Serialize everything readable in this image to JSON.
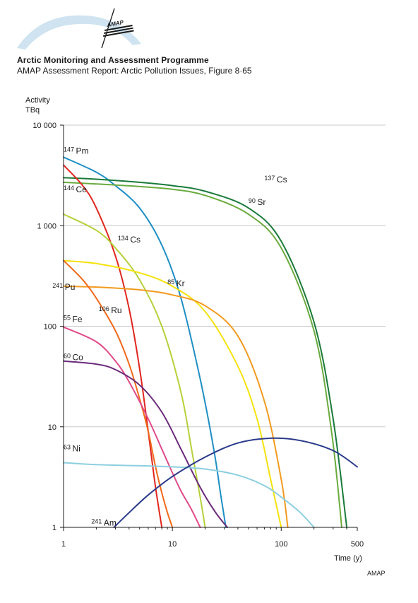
{
  "header": {
    "org_name": "Arctic Monitoring and Assessment Programme",
    "caption": "AMAP Assessment Report: Arctic Pollution Issues, Figure 8·65",
    "logo_text": "AMAP"
  },
  "footer": {
    "credit": "AMAP"
  },
  "chart_data": {
    "type": "line",
    "y_scale": "log",
    "x_scale": "log",
    "ylabel_line1": "Activity",
    "ylabel_line2": "TBq",
    "xlabel": "Time (y)",
    "xlim": [
      1,
      500
    ],
    "ylim": [
      1,
      10000
    ],
    "x_ticks": [
      {
        "value": 1,
        "label": "1"
      },
      {
        "value": 10,
        "label": "10"
      },
      {
        "value": 100,
        "label": "100"
      },
      {
        "value": 500,
        "label": "500"
      }
    ],
    "y_ticks": [
      {
        "value": 1,
        "label": "1"
      },
      {
        "value": 10,
        "label": "10"
      },
      {
        "value": 100,
        "label": "100"
      },
      {
        "value": 1000,
        "label": "1 000"
      },
      {
        "value": 10000,
        "label": "10 000"
      }
    ],
    "grid": "horizontal",
    "series": [
      {
        "mass": "147",
        "element": "Pm",
        "color": "#1f8fc4",
        "x": [
          1,
          2,
          3,
          5,
          8,
          12,
          18,
          24,
          28,
          31
        ],
        "y": [
          4800,
          3400,
          2500,
          1500,
          640,
          190,
          30,
          6,
          2,
          1
        ]
      },
      {
        "mass": "137",
        "element": "Cs",
        "color": "#1a7a3a",
        "x": [
          1,
          2,
          5,
          10,
          20,
          50,
          100,
          200,
          300,
          400
        ],
        "y": [
          3000,
          2900,
          2700,
          2500,
          2200,
          1500,
          700,
          110,
          12,
          1
        ]
      },
      {
        "mass": "90",
        "element": "Sr",
        "color": "#6aab3e",
        "x": [
          1,
          2,
          5,
          10,
          20,
          50,
          100,
          200,
          290,
          360
        ],
        "y": [
          2700,
          2600,
          2450,
          2300,
          2000,
          1300,
          600,
          90,
          9,
          1
        ]
      },
      {
        "mass": "144",
        "element": "Ce",
        "color": "#e0261f",
        "x": [
          1,
          1.5,
          2,
          3,
          4,
          5,
          6,
          7,
          8
        ],
        "y": [
          4000,
          2500,
          1500,
          500,
          150,
          38,
          9,
          2.5,
          1
        ]
      },
      {
        "mass": "134",
        "element": "Cs",
        "color": "#b5d13a",
        "x": [
          1,
          2,
          3,
          5,
          8,
          12,
          15,
          18,
          20
        ],
        "y": [
          1300,
          900,
          600,
          290,
          100,
          22,
          6,
          2,
          1
        ]
      },
      {
        "mass": "85",
        "element": "Kr",
        "color": "#f5e20c",
        "x": [
          1,
          2,
          5,
          10,
          20,
          40,
          60,
          80,
          100
        ],
        "y": [
          450,
          420,
          340,
          250,
          140,
          40,
          12,
          3,
          1
        ]
      },
      {
        "mass": "241",
        "element": "Pu",
        "color": "#f29a1f",
        "x": [
          1,
          2,
          5,
          10,
          20,
          40,
          70,
          100,
          115
        ],
        "y": [
          250,
          245,
          230,
          205,
          160,
          80,
          18,
          3,
          1
        ]
      },
      {
        "mass": "106",
        "element": "Ru",
        "color": "#f06a1a",
        "x": [
          1,
          1.5,
          2,
          3,
          4,
          5,
          6,
          7,
          8,
          9,
          10
        ],
        "y": [
          450,
          290,
          190,
          90,
          42,
          19,
          9,
          4,
          2.2,
          1.4,
          1
        ]
      },
      {
        "mass": "55",
        "element": "Fe",
        "color": "#e04a8a",
        "x": [
          1,
          2,
          3,
          4,
          6,
          8,
          10,
          12,
          15,
          18
        ],
        "y": [
          98,
          70,
          45,
          28,
          12,
          6,
          3.5,
          2.3,
          1.5,
          1
        ]
      },
      {
        "mass": "60",
        "element": "Co",
        "color": "#6a2a7a",
        "x": [
          1,
          2,
          3,
          5,
          8,
          12,
          18,
          25,
          32
        ],
        "y": [
          45,
          42,
          37,
          26,
          14,
          6,
          2.5,
          1.4,
          1
        ]
      },
      {
        "mass": "63",
        "element": "Ni",
        "color": "#8ccfe0",
        "x": [
          1,
          2,
          5,
          10,
          20,
          40,
          70,
          100,
          150,
          200
        ],
        "y": [
          4.4,
          4.2,
          4.1,
          4.0,
          3.8,
          3.3,
          2.6,
          2.0,
          1.4,
          1
        ]
      },
      {
        "mass": "241",
        "element": "Am",
        "color": "#2a3a8a",
        "x": [
          2.9,
          4,
          6,
          10,
          20,
          40,
          80,
          150,
          300,
          500
        ],
        "y": [
          1,
          1.4,
          2.1,
          3.2,
          5,
          6.9,
          7.7,
          7.3,
          5.8,
          4
        ]
      }
    ],
    "labels": [
      {
        "mass": "147",
        "element": "Pm",
        "x": 1.0,
        "y": 5200
      },
      {
        "mass": "137",
        "element": "Cs",
        "x": 70,
        "y": 2700
      },
      {
        "mass": "90",
        "element": "Sr",
        "x": 50,
        "y": 1600
      },
      {
        "mass": "144",
        "element": "Ce",
        "x": 1.0,
        "y": 2150
      },
      {
        "mass": "134",
        "element": "Cs",
        "x": 3.15,
        "y": 680
      },
      {
        "mass": "85",
        "element": "Kr",
        "x": 9.0,
        "y": 250
      },
      {
        "mass": "241",
        "element": "Pu",
        "x": 0.79,
        "y": 230
      },
      {
        "mass": "106",
        "element": "Ru",
        "x": 2.1,
        "y": 135
      },
      {
        "mass": "55",
        "element": "Fe",
        "x": 1.0,
        "y": 110
      },
      {
        "mass": "60",
        "element": "Co",
        "x": 1.0,
        "y": 46
      },
      {
        "mass": "63",
        "element": "Ni",
        "x": 1.0,
        "y": 5.7
      },
      {
        "mass": "241",
        "element": "Am",
        "x": 1.8,
        "y": 1.04
      }
    ]
  }
}
